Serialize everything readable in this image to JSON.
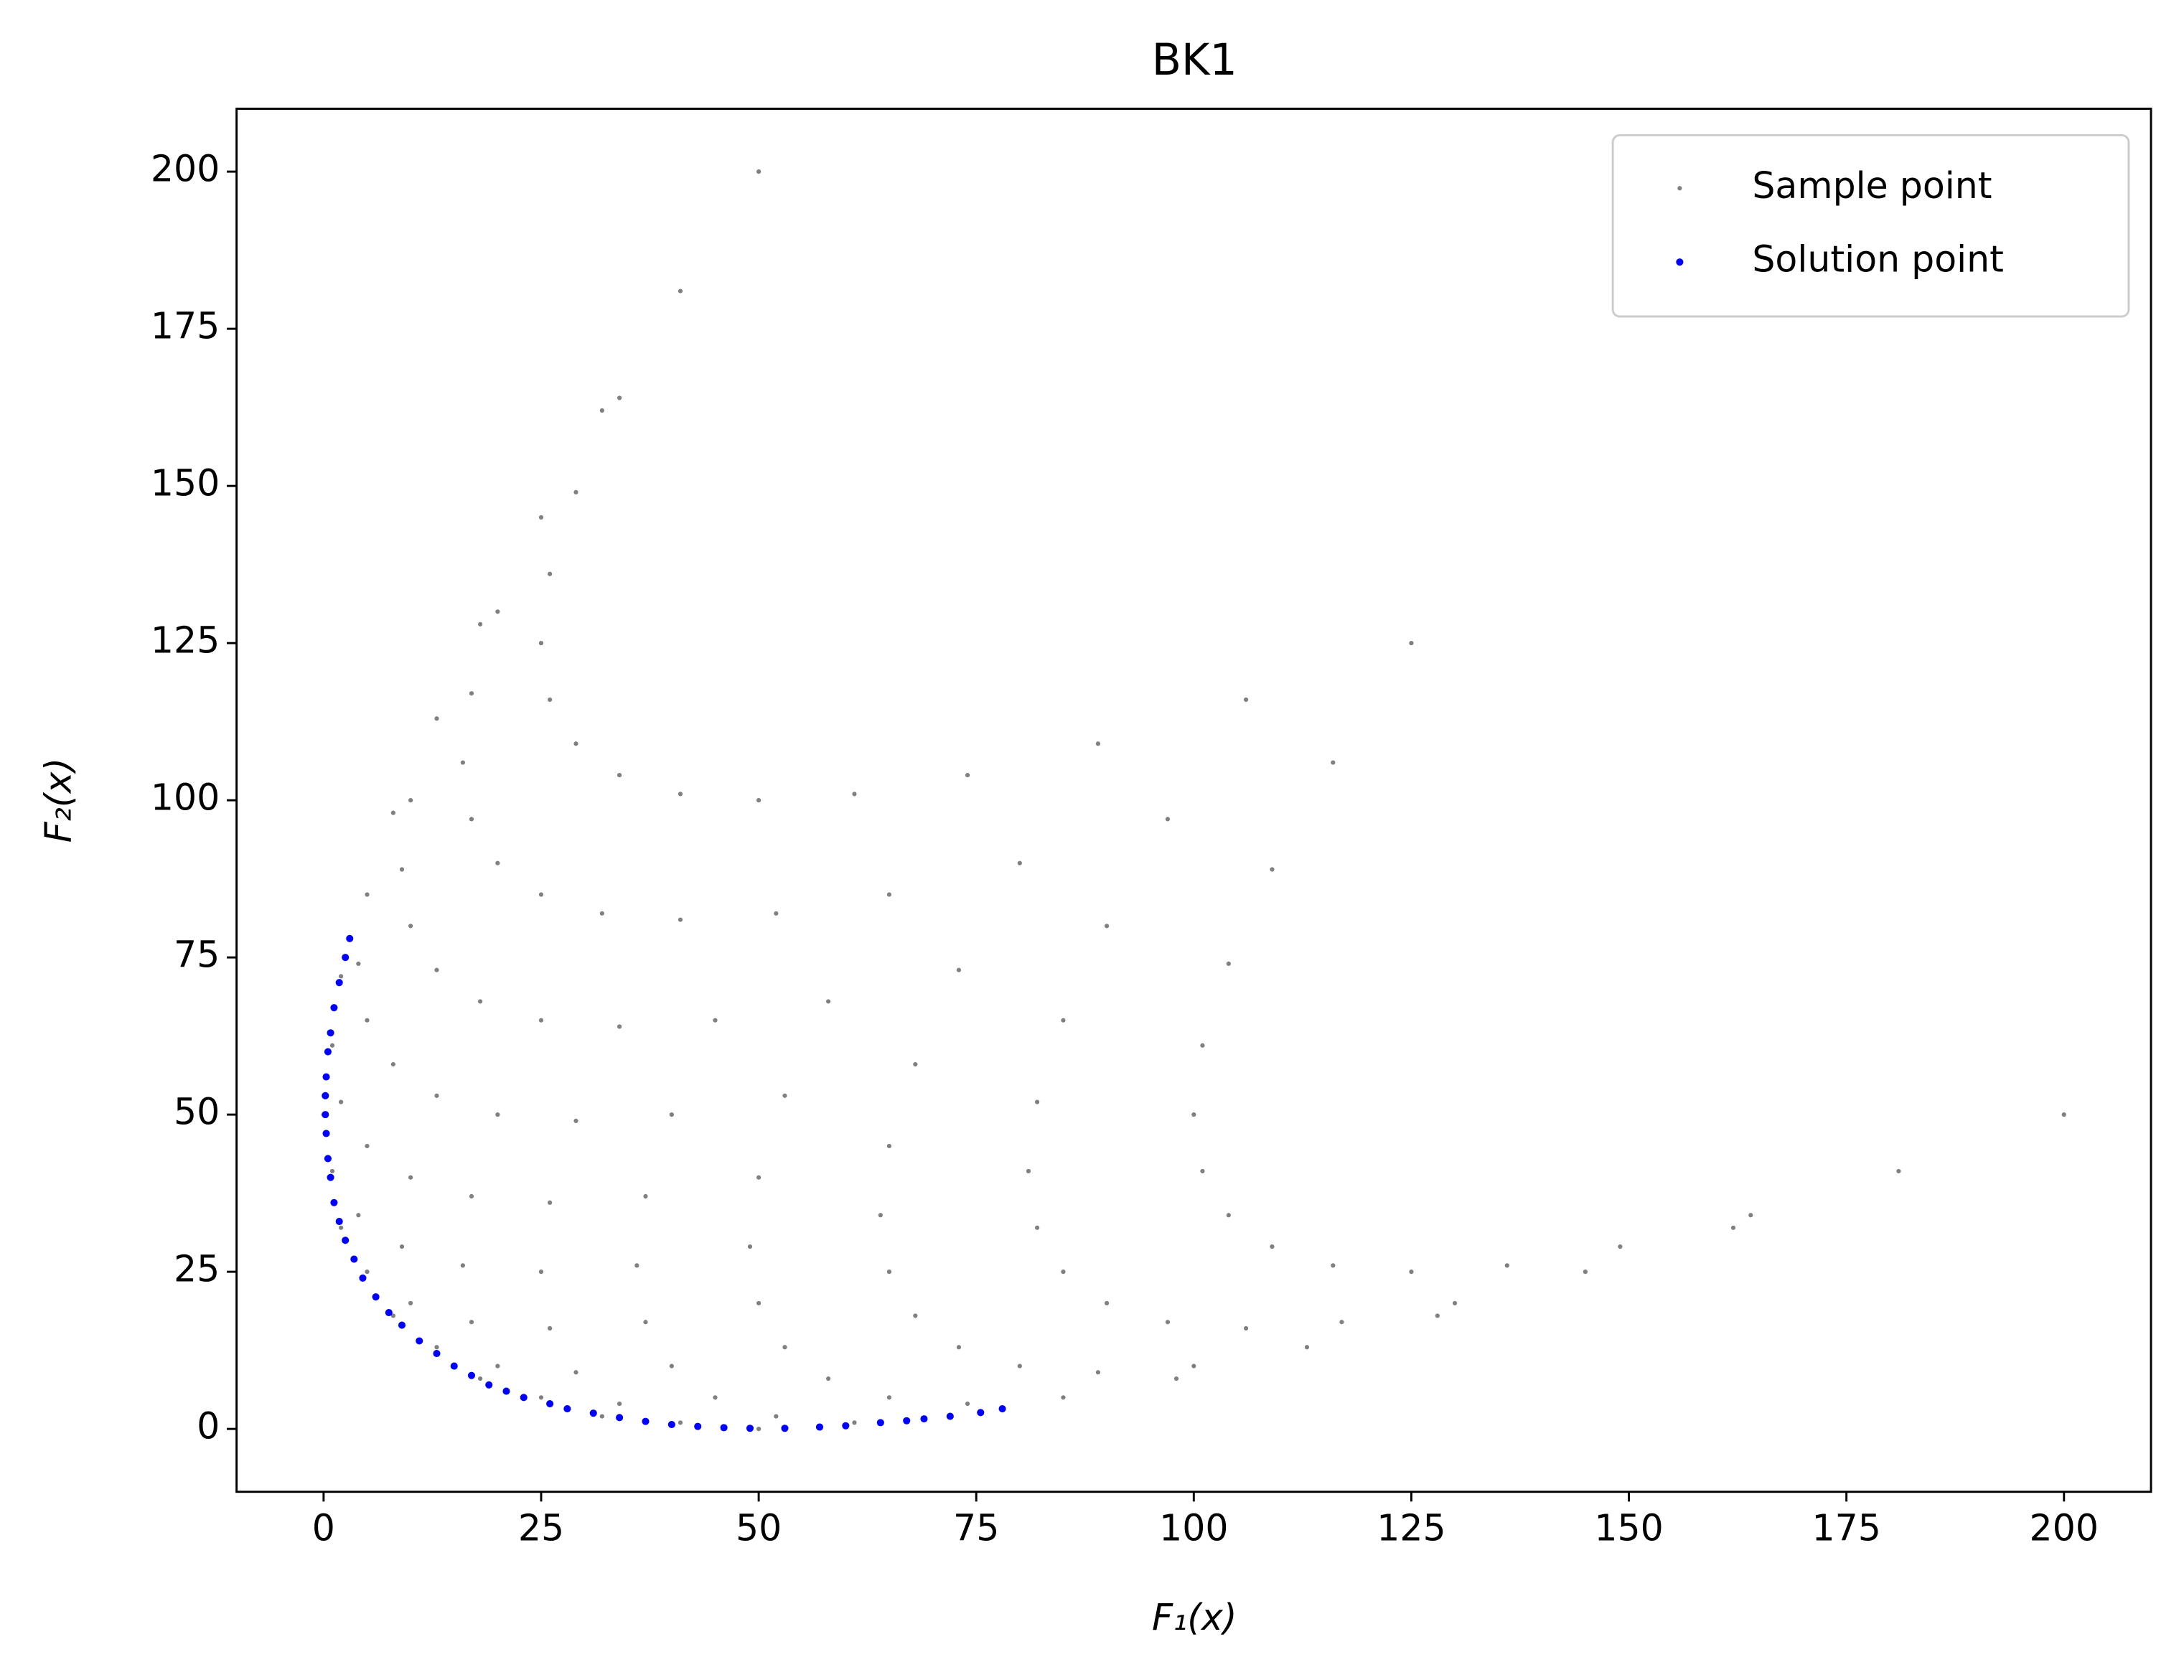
{
  "chart_data": {
    "type": "scatter",
    "title": "BK1",
    "x_label": "F₁(x)",
    "y_label": "F₂(x)",
    "xlim": [
      -10,
      210
    ],
    "ylim": [
      -10,
      210
    ],
    "xticks": [
      0,
      25,
      50,
      75,
      100,
      125,
      150,
      175,
      200
    ],
    "yticks": [
      0,
      25,
      50,
      75,
      100,
      125,
      150,
      175,
      200
    ],
    "grid": false,
    "legend": "upper right",
    "series": [
      {
        "name": "Sample point",
        "color": "#808080",
        "x": [
          50,
          41,
          34,
          29,
          26,
          25,
          26,
          29,
          34,
          41,
          50,
          61,
          74,
          89,
          106,
          125,
          32,
          25,
          20,
          17,
          16,
          17,
          20,
          25,
          32,
          41,
          52,
          65,
          80,
          97,
          116,
          18,
          13,
          10,
          9,
          10,
          13,
          18,
          25,
          34,
          45,
          58,
          73,
          90,
          109,
          8,
          5,
          4,
          5,
          8,
          13,
          20,
          29,
          40,
          53,
          68,
          85,
          104,
          2,
          1,
          2,
          5,
          10,
          17,
          26,
          37,
          50,
          65,
          82,
          101,
          0,
          1,
          4,
          9,
          16,
          25,
          36,
          49,
          64,
          81,
          100,
          2,
          5,
          10,
          17,
          26,
          37,
          50,
          65,
          82,
          101,
          8,
          13,
          20,
          29,
          40,
          53,
          68,
          85,
          104,
          18,
          25,
          34,
          45,
          58,
          73,
          90,
          109,
          32,
          41,
          52,
          65,
          80,
          97,
          116,
          50,
          61,
          74,
          89,
          106,
          125,
          72,
          85,
          100,
          117,
          136,
          98,
          113,
          130,
          149,
          128,
          145,
          164,
          162,
          181,
          200
        ],
        "values": [
          200,
          181,
          164,
          149,
          136,
          125,
          116,
          109,
          104,
          101,
          100,
          101,
          104,
          109,
          116,
          125,
          162,
          145,
          130,
          117,
          106,
          97,
          90,
          85,
          82,
          81,
          82,
          85,
          90,
          97,
          106,
          128,
          113,
          100,
          89,
          80,
          73,
          68,
          65,
          64,
          65,
          68,
          73,
          80,
          89,
          98,
          85,
          74,
          65,
          58,
          53,
          50,
          49,
          50,
          53,
          58,
          65,
          74,
          72,
          61,
          52,
          45,
          40,
          37,
          36,
          37,
          40,
          45,
          52,
          61,
          50,
          41,
          34,
          29,
          26,
          25,
          26,
          29,
          34,
          41,
          50,
          32,
          25,
          20,
          17,
          16,
          17,
          20,
          25,
          32,
          41,
          18,
          13,
          10,
          9,
          10,
          13,
          18,
          25,
          34,
          8,
          5,
          4,
          5,
          8,
          13,
          20,
          29,
          2,
          1,
          2,
          5,
          10,
          17,
          26,
          0,
          1,
          4,
          9,
          16,
          25,
          2,
          5,
          10,
          17,
          26,
          8,
          13,
          20,
          29,
          18,
          25,
          34,
          32,
          41,
          50
        ]
      },
      {
        "name": "Solution point",
        "color": "#0000ff",
        "x": [
          3,
          2.5,
          1.8,
          1.2,
          0.8,
          0.5,
          0.3,
          0.2,
          0.2,
          0.3,
          0.5,
          0.8,
          1.2,
          1.8,
          2.5,
          3.5,
          4.5,
          6,
          7.5,
          9,
          11,
          13,
          15,
          17,
          19,
          21,
          23,
          26,
          28,
          31,
          34,
          37,
          40,
          43,
          46,
          49,
          53,
          57,
          60,
          64,
          67,
          69,
          72,
          75.5,
          78
        ],
        "values": [
          78,
          75,
          71,
          67,
          63,
          60,
          56,
          53,
          50,
          47,
          43,
          40,
          36,
          33,
          30,
          27,
          24,
          21,
          18.5,
          16.5,
          14,
          12,
          10,
          8.5,
          7,
          6,
          5,
          4,
          3.2,
          2.5,
          1.8,
          1.2,
          0.7,
          0.4,
          0.2,
          0.1,
          0.1,
          0.3,
          0.5,
          1,
          1.3,
          1.6,
          2,
          2.6,
          3.2
        ]
      }
    ]
  }
}
